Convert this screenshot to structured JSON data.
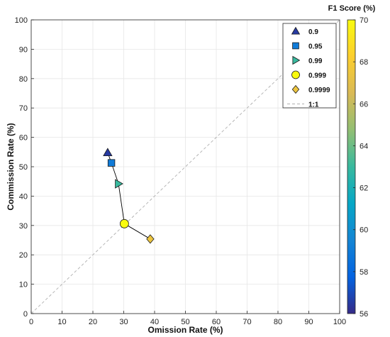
{
  "chart_data": {
    "type": "scatter",
    "title": "",
    "xlabel": "Omission Rate (%)",
    "ylabel": "Commission Rate (%)",
    "xlim": [
      0,
      100
    ],
    "ylim": [
      0,
      100
    ],
    "xticks": [
      "0",
      "10",
      "20",
      "30",
      "40",
      "50",
      "60",
      "70",
      "80",
      "90",
      "100"
    ],
    "yticks": [
      "0",
      "10",
      "20",
      "30",
      "40",
      "50",
      "60",
      "70",
      "80",
      "90",
      "100"
    ],
    "grid": true,
    "legend_position": "top-right",
    "series": [
      {
        "name": "0.9",
        "marker": "triangle-up",
        "x": 24.8,
        "y": 54.8,
        "f1": 56.5
      },
      {
        "name": "0.95",
        "marker": "square",
        "x": 26.0,
        "y": 51.3,
        "f1": 59.0
      },
      {
        "name": "0.99",
        "marker": "triangle-right",
        "x": 28.3,
        "y": 44.2,
        "f1": 63.0
      },
      {
        "name": "0.999",
        "marker": "circle",
        "x": 30.2,
        "y": 30.6,
        "f1": 70.0
      },
      {
        "name": "0.9999",
        "marker": "diamond",
        "x": 38.6,
        "y": 25.4,
        "f1": 67.5
      }
    ],
    "reference_line": {
      "name": "1:1",
      "style": "dashed",
      "color": "#b0b0b0"
    },
    "connecting_line_color": "#000000",
    "colorbar": {
      "title": "F1 Score (%)",
      "min": 56,
      "max": 70,
      "ticks": [
        "56",
        "58",
        "60",
        "62",
        "64",
        "66",
        "68",
        "70"
      ],
      "colormap": "parula",
      "stops": [
        "#352a87",
        "#0363e1",
        "#1485d4",
        "#06a7c6",
        "#38b99e",
        "#92bf73",
        "#d9ba56",
        "#fcce2e",
        "#f9fb0e"
      ]
    }
  }
}
